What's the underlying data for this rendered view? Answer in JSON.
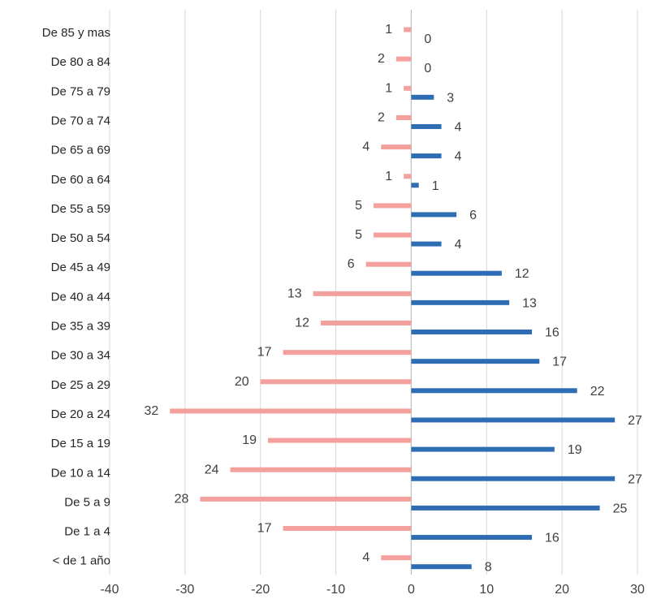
{
  "chart_data": {
    "type": "bar",
    "orientation": "horizontal",
    "title": "",
    "xlabel": "",
    "ylabel": "",
    "xlim": [
      -40,
      30
    ],
    "x_ticks": [
      "-40",
      "-30",
      "-20",
      "-10",
      "0",
      "10",
      "20",
      "30"
    ],
    "grid": true,
    "legend": "none",
    "categories": [
      "De 85 y mas",
      "De 80 a 84",
      "De 75 a 79",
      "De 70 a 74",
      "De 65 a 69",
      "De 60 a 64",
      "De 55 a 59",
      "De 50 a 54",
      "De 45 a 49",
      "De 40 a 44",
      "De 35 a 39",
      "De 30 a 34",
      "De 25 a 29",
      "De 20 a 24",
      "De 15 a 19",
      "De 10 a 14",
      "De 5 a 9",
      "De 1 a 4",
      "< de 1 año"
    ],
    "series": [
      {
        "color": "#f4a09c",
        "values": [
          -1,
          -2,
          -1,
          -2,
          -4,
          -1,
          -5,
          -5,
          -6,
          -13,
          -12,
          -17,
          -20,
          -32,
          -19,
          -24,
          -28,
          -17,
          -4
        ],
        "labels": [
          "1",
          "2",
          "1",
          "2",
          "4",
          "1",
          "5",
          "5",
          "6",
          "13",
          "12",
          "17",
          "20",
          "32",
          "19",
          "24",
          "28",
          "17",
          "4"
        ]
      },
      {
        "color": "#2e6db4",
        "values": [
          0,
          0,
          3,
          4,
          4,
          1,
          6,
          4,
          12,
          13,
          16,
          17,
          22,
          27,
          19,
          27,
          25,
          16,
          8
        ],
        "labels": [
          "0",
          "0",
          "3",
          "4",
          "4",
          "1",
          "6",
          "4",
          "12",
          "13",
          "16",
          "17",
          "22",
          "27",
          "19",
          "27",
          "25",
          "16",
          "8"
        ]
      }
    ]
  }
}
